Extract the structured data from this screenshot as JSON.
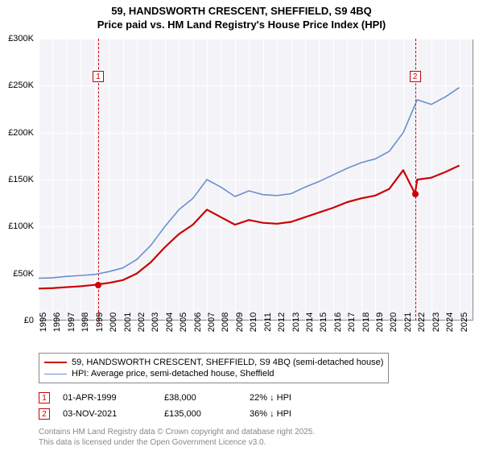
{
  "title": {
    "line1": "59, HANDSWORTH CRESCENT, SHEFFIELD, S9 4BQ",
    "line2": "Price paid vs. HM Land Registry's House Price Index (HPI)"
  },
  "chart": {
    "type": "line",
    "background_color": "#f4f4f8",
    "grid_color": "#ffffff",
    "border_color": "#888888",
    "x": {
      "min": 1995,
      "max": 2026,
      "ticks": [
        1995,
        1996,
        1997,
        1998,
        1999,
        2000,
        2001,
        2002,
        2003,
        2004,
        2005,
        2006,
        2007,
        2008,
        2009,
        2010,
        2011,
        2012,
        2013,
        2014,
        2015,
        2016,
        2017,
        2018,
        2019,
        2020,
        2021,
        2022,
        2023,
        2024,
        2025
      ]
    },
    "y": {
      "min": 0,
      "max": 300000,
      "ticks": [
        0,
        50000,
        100000,
        150000,
        200000,
        250000,
        300000
      ],
      "tick_labels": [
        "£0",
        "£50K",
        "£100K",
        "£150K",
        "£200K",
        "£250K",
        "£300K"
      ]
    },
    "series": [
      {
        "id": "hpi",
        "label": "HPI: Average price, semi-detached house, Sheffield",
        "color": "#6a8fd0",
        "line_width": 1.6,
        "points": [
          [
            1995,
            45000
          ],
          [
            1996,
            45500
          ],
          [
            1997,
            47000
          ],
          [
            1998,
            48000
          ],
          [
            1999,
            49000
          ],
          [
            2000,
            52000
          ],
          [
            2001,
            56000
          ],
          [
            2002,
            65000
          ],
          [
            2003,
            80000
          ],
          [
            2004,
            100000
          ],
          [
            2005,
            118000
          ],
          [
            2006,
            130000
          ],
          [
            2007,
            150000
          ],
          [
            2008,
            142000
          ],
          [
            2009,
            132000
          ],
          [
            2010,
            138000
          ],
          [
            2011,
            134000
          ],
          [
            2012,
            133000
          ],
          [
            2013,
            135000
          ],
          [
            2014,
            142000
          ],
          [
            2015,
            148000
          ],
          [
            2016,
            155000
          ],
          [
            2017,
            162000
          ],
          [
            2018,
            168000
          ],
          [
            2019,
            172000
          ],
          [
            2020,
            180000
          ],
          [
            2021,
            200000
          ],
          [
            2022,
            235000
          ],
          [
            2023,
            230000
          ],
          [
            2024,
            238000
          ],
          [
            2025,
            248000
          ]
        ]
      },
      {
        "id": "property",
        "label": "59, HANDSWORTH CRESCENT, SHEFFIELD, S9 4BQ (semi-detached house)",
        "color": "#cc0000",
        "line_width": 2.2,
        "points": [
          [
            1995,
            34000
          ],
          [
            1996,
            34500
          ],
          [
            1997,
            35500
          ],
          [
            1998,
            36500
          ],
          [
            1999,
            38000
          ],
          [
            2000,
            40000
          ],
          [
            2001,
            43000
          ],
          [
            2002,
            50000
          ],
          [
            2003,
            62000
          ],
          [
            2004,
            78000
          ],
          [
            2005,
            92000
          ],
          [
            2006,
            102000
          ],
          [
            2007,
            118000
          ],
          [
            2008,
            110000
          ],
          [
            2009,
            102000
          ],
          [
            2010,
            107000
          ],
          [
            2011,
            104000
          ],
          [
            2012,
            103000
          ],
          [
            2013,
            105000
          ],
          [
            2014,
            110000
          ],
          [
            2015,
            115000
          ],
          [
            2016,
            120000
          ],
          [
            2017,
            126000
          ],
          [
            2018,
            130000
          ],
          [
            2019,
            133000
          ],
          [
            2020,
            140000
          ],
          [
            2021,
            160000
          ],
          [
            2021.84,
            135000
          ],
          [
            2022,
            150000
          ],
          [
            2023,
            152000
          ],
          [
            2024,
            158000
          ],
          [
            2025,
            165000
          ]
        ]
      }
    ],
    "sale_markers": [
      {
        "n": "1",
        "x": 1999.25,
        "y": 38000,
        "label_y": 260000
      },
      {
        "n": "2",
        "x": 2021.84,
        "y": 135000,
        "label_y": 260000
      }
    ],
    "marker_color": "#cc0000"
  },
  "sales": [
    {
      "n": "1",
      "date": "01-APR-1999",
      "price": "£38,000",
      "delta": "22% ↓ HPI"
    },
    {
      "n": "2",
      "date": "03-NOV-2021",
      "price": "£135,000",
      "delta": "36% ↓ HPI"
    }
  ],
  "attribution": {
    "line1": "Contains HM Land Registry data © Crown copyright and database right 2025.",
    "line2": "This data is licensed under the Open Government Licence v3.0."
  }
}
